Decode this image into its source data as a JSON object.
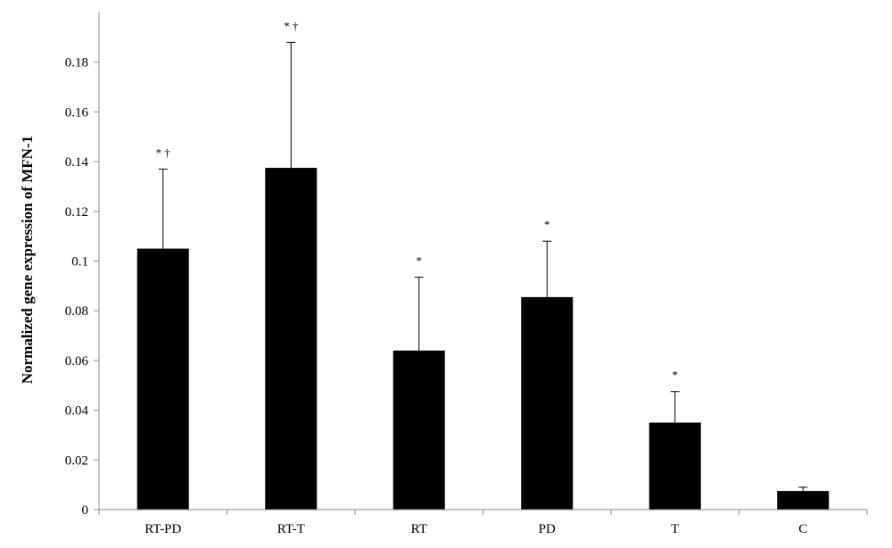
{
  "chart_data": {
    "type": "bar",
    "title": "",
    "xlabel": "",
    "ylabel": "Normalized gene expression of MFN-1",
    "ylim": [
      0,
      0.2
    ],
    "yticks": [
      0,
      0.02,
      0.04,
      0.06,
      0.08,
      0.1,
      0.12,
      0.14,
      0.16,
      0.18
    ],
    "ytick_labels": [
      "0",
      "0.02",
      "0.04",
      "0.06",
      "0.08",
      "0.1",
      "0.12",
      "0.14",
      "0.16",
      "0.18"
    ],
    "grid": false,
    "bar_color": "#000000",
    "categories": [
      "RT-PD",
      "RT-T",
      "RT",
      "PD",
      "T",
      "C"
    ],
    "values": [
      0.105,
      0.1375,
      0.064,
      0.0855,
      0.035,
      0.0075
    ],
    "error_upper": [
      0.137,
      0.188,
      0.0935,
      0.108,
      0.0475,
      0.009
    ],
    "annotations": [
      "* †",
      "* †",
      "*",
      "*",
      "*",
      ""
    ]
  }
}
